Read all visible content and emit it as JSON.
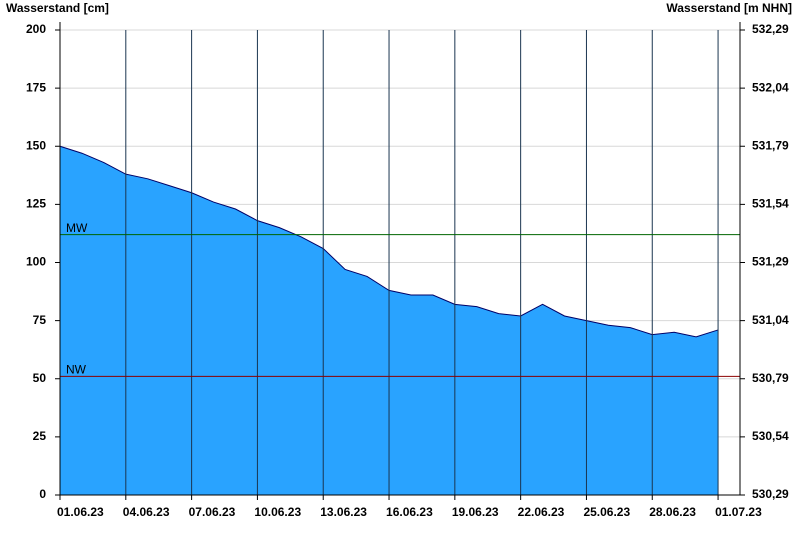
{
  "chart_data": {
    "type": "area",
    "y_label": "Wasserstand [cm]",
    "y2_label": "Wasserstand [m NHN]",
    "x": [
      "01.06.23",
      "02.06.23",
      "03.06.23",
      "04.06.23",
      "05.06.23",
      "06.06.23",
      "07.06.23",
      "08.06.23",
      "09.06.23",
      "10.06.23",
      "11.06.23",
      "12.06.23",
      "13.06.23",
      "14.06.23",
      "15.06.23",
      "16.06.23",
      "17.06.23",
      "18.06.23",
      "19.06.23",
      "20.06.23",
      "21.06.23",
      "22.06.23",
      "23.06.23",
      "24.06.23",
      "25.06.23",
      "26.06.23",
      "27.06.23",
      "28.06.23",
      "29.06.23",
      "30.06.23",
      "01.07.23"
    ],
    "series": [
      {
        "name": "Wasserstand",
        "color": "#29a3ff",
        "line_color": "#000066",
        "values": [
          150,
          147,
          143,
          138,
          136,
          133,
          130,
          126,
          123,
          118,
          115,
          111,
          106,
          97,
          94,
          88,
          86,
          86,
          82,
          81,
          78,
          77,
          82,
          77,
          75,
          73,
          72,
          69,
          70,
          68,
          71
        ]
      }
    ],
    "xticks": [
      "01.06.23",
      "04.06.23",
      "07.06.23",
      "10.06.23",
      "13.06.23",
      "16.06.23",
      "19.06.23",
      "22.06.23",
      "25.06.23",
      "28.06.23",
      "01.07.23"
    ],
    "ylim": [
      0,
      200
    ],
    "yticks": [
      0,
      25,
      50,
      75,
      100,
      125,
      150,
      175,
      200
    ],
    "y2lim": [
      530.29,
      532.29
    ],
    "y2ticks": [
      {
        "value": 530.29,
        "label": "530,29"
      },
      {
        "value": 530.54,
        "label": "530,54"
      },
      {
        "value": 530.79,
        "label": "530,79"
      },
      {
        "value": 531.04,
        "label": "531,04"
      },
      {
        "value": 531.29,
        "label": "531,29"
      },
      {
        "value": 531.54,
        "label": "531,54"
      },
      {
        "value": 531.79,
        "label": "531,79"
      },
      {
        "value": 532.04,
        "label": "532,04"
      },
      {
        "value": 532.29,
        "label": "532,29"
      }
    ],
    "grid": true,
    "reference_lines": [
      {
        "label": "MW",
        "value": 112,
        "color": "#006400"
      },
      {
        "label": "NW",
        "value": 51,
        "color": "#8b0000"
      }
    ]
  }
}
